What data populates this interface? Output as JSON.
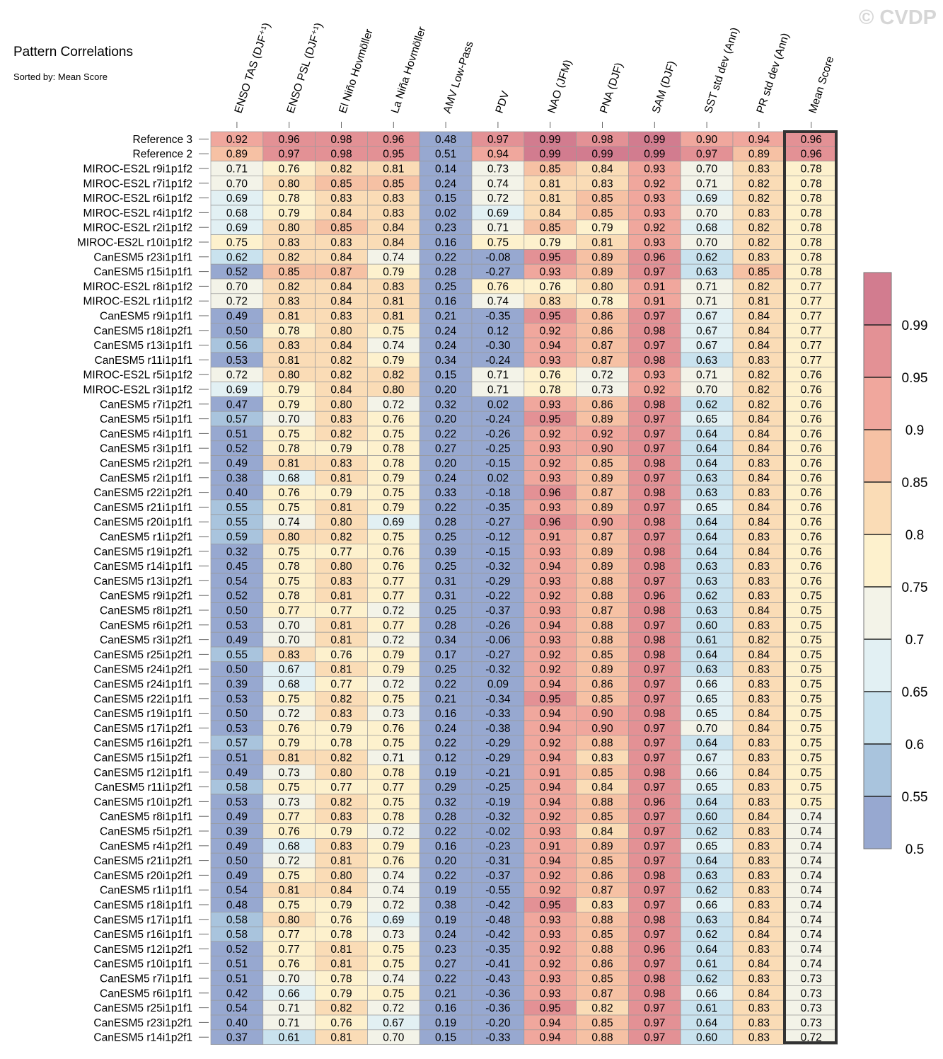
{
  "watermark": "© CVDP",
  "chart_data": {
    "type": "heatmap",
    "title": "Pattern Correlations",
    "subtitle": "Sorted by: Mean Score",
    "columns": [
      "ENSO TAS (DJF⁺¹)",
      "ENSO PSL (DJF⁺¹)",
      "El Niño Hovmöller",
      "La Niña Hovmöller",
      "AMV Low-Pass",
      "PDV",
      "NAO (JFM)",
      "PNA (DJF)",
      "SAM (DJF)",
      "SST std dev (Ann)",
      "PR std dev (Ann)",
      "Mean Score"
    ],
    "rows": [
      {
        "name": "Reference 3",
        "values": [
          0.92,
          0.96,
          0.98,
          0.96,
          0.48,
          0.97,
          0.99,
          0.98,
          0.99,
          0.9,
          0.94,
          0.96
        ]
      },
      {
        "name": "Reference 2",
        "values": [
          0.89,
          0.97,
          0.98,
          0.95,
          0.51,
          0.94,
          0.99,
          0.99,
          0.99,
          0.97,
          0.89,
          0.96
        ]
      },
      {
        "name": "MIROC-ES2L r9i1p1f2",
        "values": [
          0.71,
          0.76,
          0.82,
          0.81,
          0.14,
          0.73,
          0.85,
          0.84,
          0.93,
          0.7,
          0.83,
          0.78
        ]
      },
      {
        "name": "MIROC-ES2L r7i1p1f2",
        "values": [
          0.7,
          0.8,
          0.85,
          0.85,
          0.24,
          0.74,
          0.81,
          0.83,
          0.92,
          0.71,
          0.82,
          0.78
        ]
      },
      {
        "name": "MIROC-ES2L r6i1p1f2",
        "values": [
          0.69,
          0.78,
          0.83,
          0.83,
          0.15,
          0.72,
          0.81,
          0.85,
          0.93,
          0.69,
          0.82,
          0.78
        ]
      },
      {
        "name": "MIROC-ES2L r4i1p1f2",
        "values": [
          0.68,
          0.79,
          0.84,
          0.83,
          0.02,
          0.69,
          0.84,
          0.85,
          0.93,
          0.7,
          0.83,
          0.78
        ]
      },
      {
        "name": "MIROC-ES2L r2i1p1f2",
        "values": [
          0.69,
          0.8,
          0.85,
          0.84,
          0.23,
          0.71,
          0.85,
          0.79,
          0.92,
          0.68,
          0.82,
          0.78
        ]
      },
      {
        "name": "MIROC-ES2L r10i1p1f2",
        "values": [
          0.75,
          0.83,
          0.83,
          0.84,
          0.16,
          0.75,
          0.79,
          0.81,
          0.93,
          0.7,
          0.82,
          0.78
        ]
      },
      {
        "name": "CanESM5 r23i1p1f1",
        "values": [
          0.62,
          0.82,
          0.84,
          0.74,
          0.22,
          -0.08,
          0.95,
          0.89,
          0.96,
          0.62,
          0.83,
          0.78
        ]
      },
      {
        "name": "CanESM5 r15i1p1f1",
        "values": [
          0.52,
          0.85,
          0.87,
          0.79,
          0.28,
          -0.27,
          0.93,
          0.89,
          0.97,
          0.63,
          0.85,
          0.78
        ]
      },
      {
        "name": "MIROC-ES2L r8i1p1f2",
        "values": [
          0.7,
          0.82,
          0.84,
          0.83,
          0.25,
          0.76,
          0.76,
          0.8,
          0.91,
          0.71,
          0.82,
          0.77
        ]
      },
      {
        "name": "MIROC-ES2L r1i1p1f2",
        "values": [
          0.72,
          0.83,
          0.84,
          0.81,
          0.16,
          0.74,
          0.83,
          0.78,
          0.91,
          0.71,
          0.81,
          0.77
        ]
      },
      {
        "name": "CanESM5 r9i1p1f1",
        "values": [
          0.49,
          0.81,
          0.83,
          0.81,
          0.21,
          -0.35,
          0.95,
          0.86,
          0.97,
          0.67,
          0.84,
          0.77
        ]
      },
      {
        "name": "CanESM5 r18i1p2f1",
        "values": [
          0.5,
          0.78,
          0.8,
          0.75,
          0.24,
          0.12,
          0.92,
          0.86,
          0.98,
          0.67,
          0.84,
          0.77
        ]
      },
      {
        "name": "CanESM5 r13i1p1f1",
        "values": [
          0.56,
          0.83,
          0.84,
          0.74,
          0.24,
          -0.3,
          0.94,
          0.87,
          0.97,
          0.67,
          0.84,
          0.77
        ]
      },
      {
        "name": "CanESM5 r11i1p1f1",
        "values": [
          0.53,
          0.81,
          0.82,
          0.79,
          0.34,
          -0.24,
          0.93,
          0.87,
          0.98,
          0.63,
          0.83,
          0.77
        ]
      },
      {
        "name": "MIROC-ES2L r5i1p1f2",
        "values": [
          0.72,
          0.8,
          0.82,
          0.82,
          0.15,
          0.71,
          0.76,
          0.72,
          0.93,
          0.71,
          0.82,
          0.76
        ]
      },
      {
        "name": "MIROC-ES2L r3i1p1f2",
        "values": [
          0.69,
          0.79,
          0.84,
          0.8,
          0.2,
          0.71,
          0.78,
          0.73,
          0.92,
          0.7,
          0.82,
          0.76
        ]
      },
      {
        "name": "CanESM5 r7i1p2f1",
        "values": [
          0.47,
          0.79,
          0.8,
          0.72,
          0.32,
          0.02,
          0.93,
          0.86,
          0.98,
          0.62,
          0.82,
          0.76
        ]
      },
      {
        "name": "CanESM5 r5i1p1f1",
        "values": [
          0.57,
          0.7,
          0.83,
          0.76,
          0.2,
          -0.24,
          0.95,
          0.89,
          0.97,
          0.65,
          0.84,
          0.76
        ]
      },
      {
        "name": "CanESM5 r4i1p1f1",
        "values": [
          0.51,
          0.75,
          0.82,
          0.75,
          0.22,
          -0.26,
          0.92,
          0.92,
          0.97,
          0.64,
          0.84,
          0.76
        ]
      },
      {
        "name": "CanESM5 r3i1p1f1",
        "values": [
          0.52,
          0.78,
          0.79,
          0.78,
          0.27,
          -0.25,
          0.93,
          0.9,
          0.97,
          0.64,
          0.84,
          0.76
        ]
      },
      {
        "name": "CanESM5 r2i1p2f1",
        "values": [
          0.49,
          0.81,
          0.83,
          0.78,
          0.2,
          -0.15,
          0.92,
          0.85,
          0.98,
          0.64,
          0.83,
          0.76
        ]
      },
      {
        "name": "CanESM5 r2i1p1f1",
        "values": [
          0.38,
          0.68,
          0.81,
          0.79,
          0.24,
          0.02,
          0.93,
          0.89,
          0.97,
          0.63,
          0.84,
          0.76
        ]
      },
      {
        "name": "CanESM5 r22i1p2f1",
        "values": [
          0.4,
          0.76,
          0.79,
          0.75,
          0.33,
          -0.18,
          0.96,
          0.87,
          0.98,
          0.63,
          0.83,
          0.76
        ]
      },
      {
        "name": "CanESM5 r21i1p1f1",
        "values": [
          0.55,
          0.75,
          0.81,
          0.79,
          0.22,
          -0.35,
          0.93,
          0.89,
          0.97,
          0.65,
          0.84,
          0.76
        ]
      },
      {
        "name": "CanESM5 r20i1p1f1",
        "values": [
          0.55,
          0.74,
          0.8,
          0.69,
          0.28,
          -0.27,
          0.96,
          0.9,
          0.98,
          0.64,
          0.84,
          0.76
        ]
      },
      {
        "name": "CanESM5 r1i1p2f1",
        "values": [
          0.59,
          0.8,
          0.82,
          0.75,
          0.25,
          -0.12,
          0.91,
          0.87,
          0.97,
          0.64,
          0.83,
          0.76
        ]
      },
      {
        "name": "CanESM5 r19i1p2f1",
        "values": [
          0.32,
          0.75,
          0.77,
          0.76,
          0.39,
          -0.15,
          0.93,
          0.89,
          0.98,
          0.64,
          0.84,
          0.76
        ]
      },
      {
        "name": "CanESM5 r14i1p1f1",
        "values": [
          0.45,
          0.78,
          0.8,
          0.76,
          0.25,
          -0.32,
          0.94,
          0.89,
          0.98,
          0.63,
          0.83,
          0.76
        ]
      },
      {
        "name": "CanESM5 r13i1p2f1",
        "values": [
          0.54,
          0.75,
          0.83,
          0.77,
          0.31,
          -0.29,
          0.93,
          0.88,
          0.97,
          0.63,
          0.83,
          0.76
        ]
      },
      {
        "name": "CanESM5 r9i1p2f1",
        "values": [
          0.52,
          0.78,
          0.81,
          0.77,
          0.31,
          -0.22,
          0.92,
          0.88,
          0.96,
          0.62,
          0.83,
          0.75
        ]
      },
      {
        "name": "CanESM5 r8i1p2f1",
        "values": [
          0.5,
          0.77,
          0.77,
          0.72,
          0.25,
          -0.37,
          0.93,
          0.87,
          0.98,
          0.63,
          0.84,
          0.75
        ]
      },
      {
        "name": "CanESM5 r6i1p2f1",
        "values": [
          0.53,
          0.7,
          0.81,
          0.77,
          0.28,
          -0.26,
          0.94,
          0.88,
          0.97,
          0.6,
          0.83,
          0.75
        ]
      },
      {
        "name": "CanESM5 r3i1p2f1",
        "values": [
          0.49,
          0.7,
          0.81,
          0.72,
          0.34,
          -0.06,
          0.93,
          0.88,
          0.98,
          0.61,
          0.82,
          0.75
        ]
      },
      {
        "name": "CanESM5 r25i1p2f1",
        "values": [
          0.55,
          0.83,
          0.76,
          0.79,
          0.17,
          -0.27,
          0.92,
          0.85,
          0.98,
          0.64,
          0.84,
          0.75
        ]
      },
      {
        "name": "CanESM5 r24i1p2f1",
        "values": [
          0.5,
          0.67,
          0.81,
          0.79,
          0.25,
          -0.32,
          0.92,
          0.89,
          0.97,
          0.63,
          0.83,
          0.75
        ]
      },
      {
        "name": "CanESM5 r24i1p1f1",
        "values": [
          0.39,
          0.68,
          0.77,
          0.72,
          0.22,
          0.09,
          0.94,
          0.86,
          0.97,
          0.66,
          0.83,
          0.75
        ]
      },
      {
        "name": "CanESM5 r22i1p1f1",
        "values": [
          0.53,
          0.75,
          0.82,
          0.75,
          0.21,
          -0.34,
          0.95,
          0.85,
          0.97,
          0.65,
          0.83,
          0.75
        ]
      },
      {
        "name": "CanESM5 r19i1p1f1",
        "values": [
          0.5,
          0.72,
          0.83,
          0.73,
          0.16,
          -0.33,
          0.94,
          0.9,
          0.98,
          0.65,
          0.84,
          0.75
        ]
      },
      {
        "name": "CanESM5 r17i1p2f1",
        "values": [
          0.53,
          0.76,
          0.79,
          0.76,
          0.24,
          -0.38,
          0.94,
          0.9,
          0.97,
          0.7,
          0.84,
          0.75
        ]
      },
      {
        "name": "CanESM5 r16i1p2f1",
        "values": [
          0.57,
          0.79,
          0.78,
          0.75,
          0.22,
          -0.29,
          0.92,
          0.88,
          0.97,
          0.64,
          0.83,
          0.75
        ]
      },
      {
        "name": "CanESM5 r15i1p2f1",
        "values": [
          0.51,
          0.81,
          0.82,
          0.71,
          0.12,
          -0.29,
          0.94,
          0.83,
          0.97,
          0.67,
          0.83,
          0.75
        ]
      },
      {
        "name": "CanESM5 r12i1p1f1",
        "values": [
          0.49,
          0.73,
          0.8,
          0.78,
          0.19,
          -0.21,
          0.91,
          0.85,
          0.98,
          0.66,
          0.84,
          0.75
        ]
      },
      {
        "name": "CanESM5 r11i1p2f1",
        "values": [
          0.58,
          0.75,
          0.77,
          0.77,
          0.29,
          -0.25,
          0.94,
          0.84,
          0.97,
          0.65,
          0.83,
          0.75
        ]
      },
      {
        "name": "CanESM5 r10i1p2f1",
        "values": [
          0.53,
          0.73,
          0.82,
          0.75,
          0.32,
          -0.19,
          0.94,
          0.88,
          0.96,
          0.64,
          0.83,
          0.75
        ]
      },
      {
        "name": "CanESM5 r8i1p1f1",
        "values": [
          0.49,
          0.77,
          0.83,
          0.78,
          0.28,
          -0.32,
          0.92,
          0.85,
          0.97,
          0.6,
          0.84,
          0.74
        ]
      },
      {
        "name": "CanESM5 r5i1p2f1",
        "values": [
          0.39,
          0.76,
          0.79,
          0.72,
          0.22,
          -0.02,
          0.93,
          0.84,
          0.97,
          0.62,
          0.83,
          0.74
        ]
      },
      {
        "name": "CanESM5 r4i1p2f1",
        "values": [
          0.49,
          0.68,
          0.83,
          0.79,
          0.16,
          -0.23,
          0.91,
          0.89,
          0.97,
          0.65,
          0.83,
          0.74
        ]
      },
      {
        "name": "CanESM5 r21i1p2f1",
        "values": [
          0.5,
          0.72,
          0.81,
          0.76,
          0.2,
          -0.31,
          0.94,
          0.85,
          0.97,
          0.64,
          0.83,
          0.74
        ]
      },
      {
        "name": "CanESM5 r20i1p2f1",
        "values": [
          0.49,
          0.75,
          0.8,
          0.74,
          0.22,
          -0.37,
          0.92,
          0.86,
          0.98,
          0.63,
          0.83,
          0.74
        ]
      },
      {
        "name": "CanESM5 r1i1p1f1",
        "values": [
          0.54,
          0.81,
          0.84,
          0.74,
          0.19,
          -0.55,
          0.92,
          0.87,
          0.97,
          0.62,
          0.83,
          0.74
        ]
      },
      {
        "name": "CanESM5 r18i1p1f1",
        "values": [
          0.48,
          0.75,
          0.79,
          0.72,
          0.38,
          -0.42,
          0.95,
          0.83,
          0.97,
          0.66,
          0.83,
          0.74
        ]
      },
      {
        "name": "CanESM5 r17i1p1f1",
        "values": [
          0.58,
          0.8,
          0.76,
          0.69,
          0.19,
          -0.48,
          0.93,
          0.88,
          0.98,
          0.63,
          0.84,
          0.74
        ]
      },
      {
        "name": "CanESM5 r16i1p1f1",
        "values": [
          0.58,
          0.77,
          0.78,
          0.73,
          0.24,
          -0.42,
          0.93,
          0.85,
          0.97,
          0.62,
          0.84,
          0.74
        ]
      },
      {
        "name": "CanESM5 r12i1p2f1",
        "values": [
          0.52,
          0.77,
          0.81,
          0.75,
          0.23,
          -0.35,
          0.92,
          0.88,
          0.96,
          0.64,
          0.83,
          0.74
        ]
      },
      {
        "name": "CanESM5 r10i1p1f1",
        "values": [
          0.51,
          0.76,
          0.81,
          0.75,
          0.27,
          -0.41,
          0.92,
          0.86,
          0.97,
          0.61,
          0.84,
          0.74
        ]
      },
      {
        "name": "CanESM5 r7i1p1f1",
        "values": [
          0.51,
          0.7,
          0.78,
          0.74,
          0.22,
          -0.43,
          0.93,
          0.85,
          0.98,
          0.62,
          0.83,
          0.73
        ]
      },
      {
        "name": "CanESM5 r6i1p1f1",
        "values": [
          0.42,
          0.66,
          0.79,
          0.75,
          0.21,
          -0.36,
          0.93,
          0.87,
          0.98,
          0.66,
          0.84,
          0.73
        ]
      },
      {
        "name": "CanESM5 r25i1p1f1",
        "values": [
          0.54,
          0.71,
          0.82,
          0.72,
          0.16,
          -0.36,
          0.95,
          0.82,
          0.97,
          0.61,
          0.83,
          0.73
        ]
      },
      {
        "name": "CanESM5 r23i1p2f1",
        "values": [
          0.4,
          0.71,
          0.76,
          0.67,
          0.19,
          -0.2,
          0.94,
          0.85,
          0.97,
          0.64,
          0.83,
          0.73
        ]
      },
      {
        "name": "CanESM5 r14i1p2f1",
        "values": [
          0.37,
          0.61,
          0.81,
          0.7,
          0.15,
          -0.33,
          0.94,
          0.88,
          0.97,
          0.6,
          0.83,
          0.72
        ]
      }
    ],
    "colorbar": {
      "labels": [
        "0.99",
        "0.95",
        "0.9",
        "0.85",
        "0.8",
        "0.75",
        "0.7",
        "0.65",
        "0.6",
        "0.55",
        "0.5"
      ],
      "bins_high_to_low": [
        "#d27c8f",
        "#e39195",
        "#f0a79d",
        "#f6c1a4",
        "#fadcb6",
        "#fdf1cd",
        "#f3f3e8",
        "#e2f0f3",
        "#c9e2ee",
        "#a9c4dd",
        "#97a8d0"
      ]
    }
  }
}
